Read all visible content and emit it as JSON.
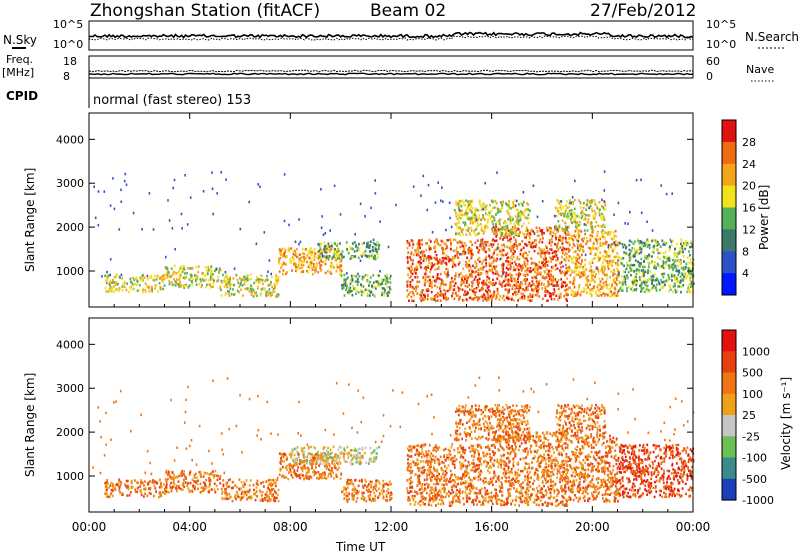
{
  "header": {
    "station": "Zhongshan Station (fitACF)",
    "beam": "Beam 02",
    "date": "27/Feb/2012"
  },
  "noise_panel": {
    "left_label": "N.Sky",
    "right_label": "N.Search",
    "left_ticks": [
      "10^5",
      "10^0"
    ],
    "right_ticks": [
      "10^5",
      "10^0"
    ]
  },
  "freq_panel": {
    "left_label_line1": "Freq.",
    "left_label_line2": "[MHz]",
    "left_ticks": [
      "18",
      "8"
    ],
    "right_label": "Nave",
    "right_ticks": [
      "60",
      "0"
    ]
  },
  "cpid_panel": {
    "label": "CPID",
    "text": "normal (fast stereo) 153"
  },
  "x_axis": {
    "label": "Time UT",
    "ticks": [
      "00:00",
      "04:00",
      "08:00",
      "12:00",
      "16:00",
      "20:00",
      "00:00"
    ]
  },
  "chart_data": [
    {
      "type": "heatmap",
      "quantity": "Power",
      "ylabel": "Slant Range [km]",
      "xlabel": "Time UT",
      "x_range_hours": [
        0,
        24
      ],
      "ylim": [
        180,
        4600
      ],
      "y_ticks": [
        1000,
        2000,
        3000,
        4000
      ],
      "colorbar": {
        "label": "Power [dB]",
        "ticks": [
          "4",
          "8",
          "12",
          "16",
          "20",
          "24",
          "28"
        ],
        "colors": [
          "#0018ff",
          "#2d52c8",
          "#3b7a6a",
          "#55b05a",
          "#f2e21c",
          "#f5a51a",
          "#f06a12",
          "#e31212"
        ]
      },
      "scatter_regions": [
        {
          "t": [
            0.6,
            3.0
          ],
          "r": [
            500,
            900
          ],
          "level": 4
        },
        {
          "t": [
            3.0,
            5.2
          ],
          "r": [
            600,
            1100
          ],
          "level": 4
        },
        {
          "t": [
            5.2,
            7.5
          ],
          "r": [
            400,
            900
          ],
          "level": 4
        },
        {
          "t": [
            7.5,
            10.0
          ],
          "r": [
            900,
            1500
          ],
          "level": 5
        },
        {
          "t": [
            9.0,
            11.5
          ],
          "r": [
            1250,
            1650
          ],
          "level": 3
        },
        {
          "t": [
            10.0,
            12.0
          ],
          "r": [
            400,
            900
          ],
          "level": 3
        },
        {
          "t": [
            12.6,
            16.0
          ],
          "r": [
            300,
            1700
          ],
          "level": 6
        },
        {
          "t": [
            16.0,
            19.0
          ],
          "r": [
            300,
            2000
          ],
          "level": 6
        },
        {
          "t": [
            19.0,
            21.0
          ],
          "r": [
            400,
            1900
          ],
          "level": 5
        },
        {
          "t": [
            21.0,
            24.0
          ],
          "r": [
            500,
            1700
          ],
          "level": 3
        },
        {
          "t": [
            14.5,
            17.5
          ],
          "r": [
            1800,
            2600
          ],
          "level": 4
        },
        {
          "t": [
            18.5,
            20.5
          ],
          "r": [
            1900,
            2600
          ],
          "level": 4
        }
      ]
    },
    {
      "type": "heatmap",
      "quantity": "Velocity",
      "ylabel": "Slant Range [km]",
      "xlabel": "Time UT",
      "x_range_hours": [
        0,
        24
      ],
      "ylim": [
        180,
        4600
      ],
      "y_ticks": [
        1000,
        2000,
        3000,
        4000
      ],
      "colorbar": {
        "label": "Velocity [m s⁻¹]",
        "ticks": [
          "1000",
          "500",
          "100",
          "25",
          "-25",
          "-100",
          "-500",
          "-1000"
        ],
        "colors": [
          "#1b3fb8",
          "#3d8a8a",
          "#6bbf55",
          "#c6c6c6",
          "#f0a018",
          "#ef7412",
          "#e8400e",
          "#e51010"
        ]
      },
      "scatter_regions": [
        {
          "t": [
            0.6,
            3.0
          ],
          "r": [
            500,
            900
          ],
          "level": 5
        },
        {
          "t": [
            3.0,
            5.2
          ],
          "r": [
            600,
            1100
          ],
          "level": 5
        },
        {
          "t": [
            5.2,
            7.5
          ],
          "r": [
            400,
            900
          ],
          "level": 5
        },
        {
          "t": [
            7.5,
            10.0
          ],
          "r": [
            900,
            1500
          ],
          "level": 5
        },
        {
          "t": [
            8.0,
            11.5
          ],
          "r": [
            1250,
            1650
          ],
          "level": 3
        },
        {
          "t": [
            10.0,
            12.0
          ],
          "r": [
            400,
            900
          ],
          "level": 5
        },
        {
          "t": [
            12.6,
            16.0
          ],
          "r": [
            300,
            1700
          ],
          "level": 5
        },
        {
          "t": [
            16.0,
            19.0
          ],
          "r": [
            300,
            2000
          ],
          "level": 5
        },
        {
          "t": [
            19.0,
            21.0
          ],
          "r": [
            400,
            1900
          ],
          "level": 5
        },
        {
          "t": [
            21.0,
            24.0
          ],
          "r": [
            500,
            1700
          ],
          "level": 6
        },
        {
          "t": [
            14.5,
            17.5
          ],
          "r": [
            1800,
            2600
          ],
          "level": 5
        },
        {
          "t": [
            18.5,
            20.5
          ],
          "r": [
            1900,
            2600
          ],
          "level": 5
        }
      ]
    }
  ]
}
